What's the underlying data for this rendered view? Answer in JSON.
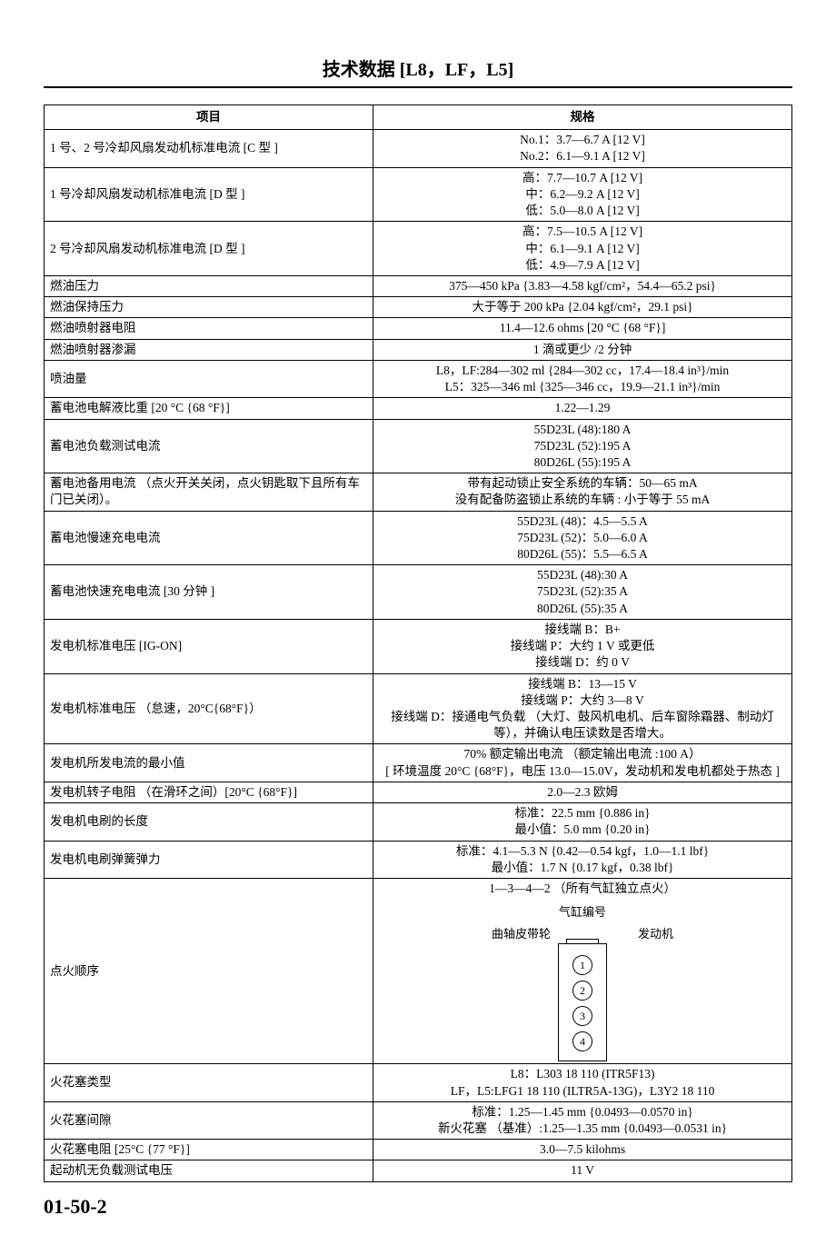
{
  "title": "技术数据 [L8，LF，L5]",
  "page_number": "01-50-2",
  "table": {
    "header_item": "项目",
    "header_spec": "规格",
    "rows": [
      {
        "item": "1 号、2 号冷却风扇发动机标准电流 [C 型 ]",
        "spec": [
          "No.1：3.7—6.7 A [12 V]",
          "No.2：6.1—9.1 A [12 V]"
        ]
      },
      {
        "item": "1 号冷却风扇发动机标准电流 [D 型 ]",
        "spec": [
          "高：7.7—10.7 A [12 V]",
          "中：6.2—9.2 A [12 V]",
          "低：5.0—8.0 A [12 V]"
        ]
      },
      {
        "item": "2 号冷却风扇发动机标准电流 [D 型 ]",
        "spec": [
          "高：7.5—10.5 A [12 V]",
          "中：6.1—9.1 A [12 V]",
          "低：4.9—7.9 A [12 V]"
        ]
      },
      {
        "item": "燃油压力",
        "spec": [
          "375—450 kPa {3.83—4.58 kgf/cm²，54.4—65.2 psi}"
        ]
      },
      {
        "item": "燃油保持压力",
        "spec": [
          "大于等于 200 kPa {2.04 kgf/cm²，29.1 psi}"
        ]
      },
      {
        "item": "燃油喷射器电阻",
        "spec": [
          "11.4—12.6 ohms [20 °C {68 °F}]"
        ]
      },
      {
        "item": "燃油喷射器渗漏",
        "spec": [
          "1 滴或更少 /2 分钟"
        ]
      },
      {
        "item": "喷油量",
        "spec": [
          "L8，LF:284—302 ml {284—302 cc，17.4—18.4 in³}/min",
          "L5：325—346 ml {325—346 cc，19.9—21.1 in³}/min"
        ]
      },
      {
        "item": "蓄电池电解液比重 [20 °C {68 °F}]",
        "spec": [
          "1.22—1.29"
        ]
      },
      {
        "item": "蓄电池负载测试电流",
        "spec": [
          "55D23L (48):180 A",
          "75D23L (52):195 A",
          "80D26L (55):195 A"
        ]
      },
      {
        "item": "蓄电池备用电流 （点火开关关闭，点火钥匙取下且所有车门已关闭）。",
        "spec": [
          "带有起动锁止安全系统的车辆：50—65 mA",
          "没有配备防盗锁止系统的车辆 : 小于等于 55 mA"
        ]
      },
      {
        "item": "蓄电池慢速充电电流",
        "spec": [
          "55D23L (48)：4.5—5.5 A",
          "75D23L (52)：5.0—6.0 A",
          "80D26L (55)：5.5—6.5 A"
        ]
      },
      {
        "item": "蓄电池快速充电电流 [30 分钟 ]",
        "spec": [
          "55D23L (48):30 A",
          "75D23L (52):35 A",
          "80D26L (55):35 A"
        ]
      },
      {
        "item": "发电机标准电压 [IG-ON]",
        "spec": [
          "接线端 B：B+",
          "接线端 P：大约 1 V 或更低",
          "接线端 D：约 0 V"
        ]
      },
      {
        "item": "发电机标准电压 （怠速，20°C{68°F}）",
        "spec": [
          "接线端 B：13—15 V",
          "接线端 P：大约 3—8 V",
          "接线端 D：接通电气负载 （大灯、鼓风机电机、后车窗除霜器、制动灯等），并确认电压读数是否增大。"
        ]
      },
      {
        "item": "发电机所发电流的最小值",
        "spec": [
          "70% 额定输出电流 （额定输出电流 :100 A）",
          "[ 环境温度 20°C {68°F}，电压 13.0—15.0V，发动机和发电机都处于热态 ]"
        ]
      },
      {
        "item": "发电机转子电阻 （在滑环之间）[20°C {68°F}]",
        "spec": [
          "2.0—2.3 欧姆"
        ]
      },
      {
        "item": "发电机电刷的长度",
        "spec": [
          "标准：22.5 mm {0.886 in}",
          "最小值：5.0 mm {0.20 in}"
        ]
      },
      {
        "item": "发电机电刷弹簧弹力",
        "spec": [
          "标准：4.1—5.3 N {0.42—0.54 kgf，1.0—1.1 lbf}",
          "最小值：1.7 N {0.17 kgf，0.38 lbf}"
        ]
      },
      {
        "item": "点火顺序",
        "spec_type": "firing",
        "firing": {
          "header": "1—3—4—2 （所有气缸独立点火）",
          "cyl_label": "气缸编号",
          "pulley_label": "曲轴皮带轮",
          "engine_label": "发动机",
          "cylinders": [
            "1",
            "2",
            "3",
            "4"
          ]
        }
      },
      {
        "item": "火花塞类型",
        "spec": [
          "L8：L303 18 110 (ITR5F13)",
          "LF，L5:LFG1 18 110 (ILTR5A-13G)，L3Y2 18 110"
        ]
      },
      {
        "item": "火花塞间隙",
        "spec": [
          "标准：1.25—1.45 mm {0.0493—0.0570 in}",
          "新火花塞 （基准）:1.25—1.35 mm {0.0493—0.0531 in}"
        ]
      },
      {
        "item": "火花塞电阻 [25°C {77 °F}]",
        "spec": [
          "3.0—7.5 kilohms"
        ]
      },
      {
        "item": "起动机无负载测试电压",
        "spec": [
          "11 V"
        ]
      }
    ]
  }
}
